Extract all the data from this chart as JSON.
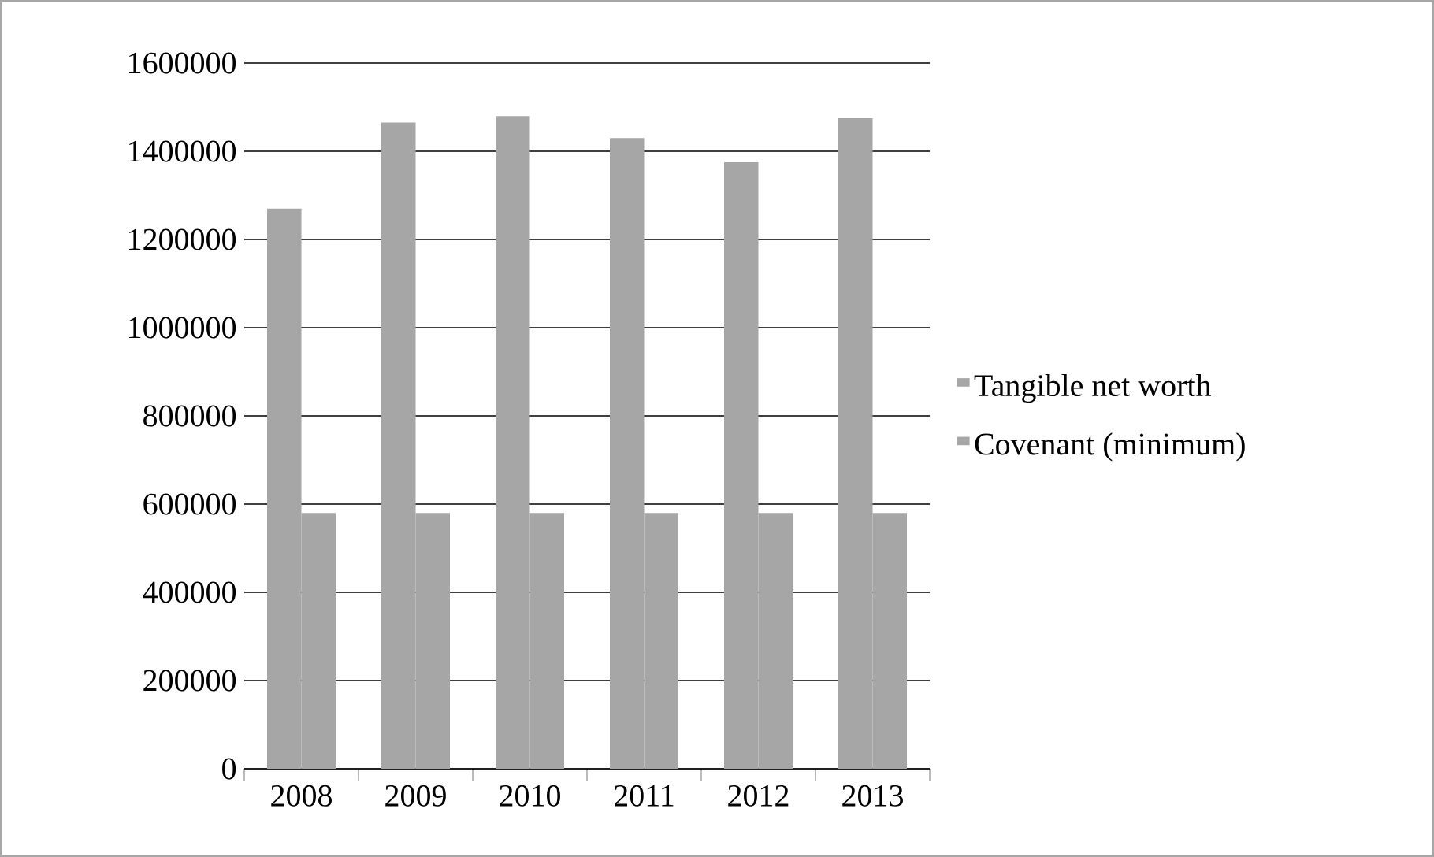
{
  "chart_data": {
    "type": "bar",
    "categories": [
      "2008",
      "2009",
      "2010",
      "2011",
      "2012",
      "2013"
    ],
    "series": [
      {
        "name": "Tangible net worth",
        "color": "#a6a6a6",
        "values": [
          1270000,
          1465000,
          1480000,
          1430000,
          1375000,
          1475000
        ]
      },
      {
        "name": "Covenant (minimum)",
        "color": "#a6a6a6",
        "values": [
          580000,
          580000,
          580000,
          580000,
          580000,
          580000
        ]
      }
    ],
    "ylim": [
      0,
      1600000
    ],
    "yticks": [
      0,
      200000,
      400000,
      600000,
      800000,
      1000000,
      1200000,
      1400000,
      1600000
    ],
    "grid": "y",
    "legend": "right"
  }
}
